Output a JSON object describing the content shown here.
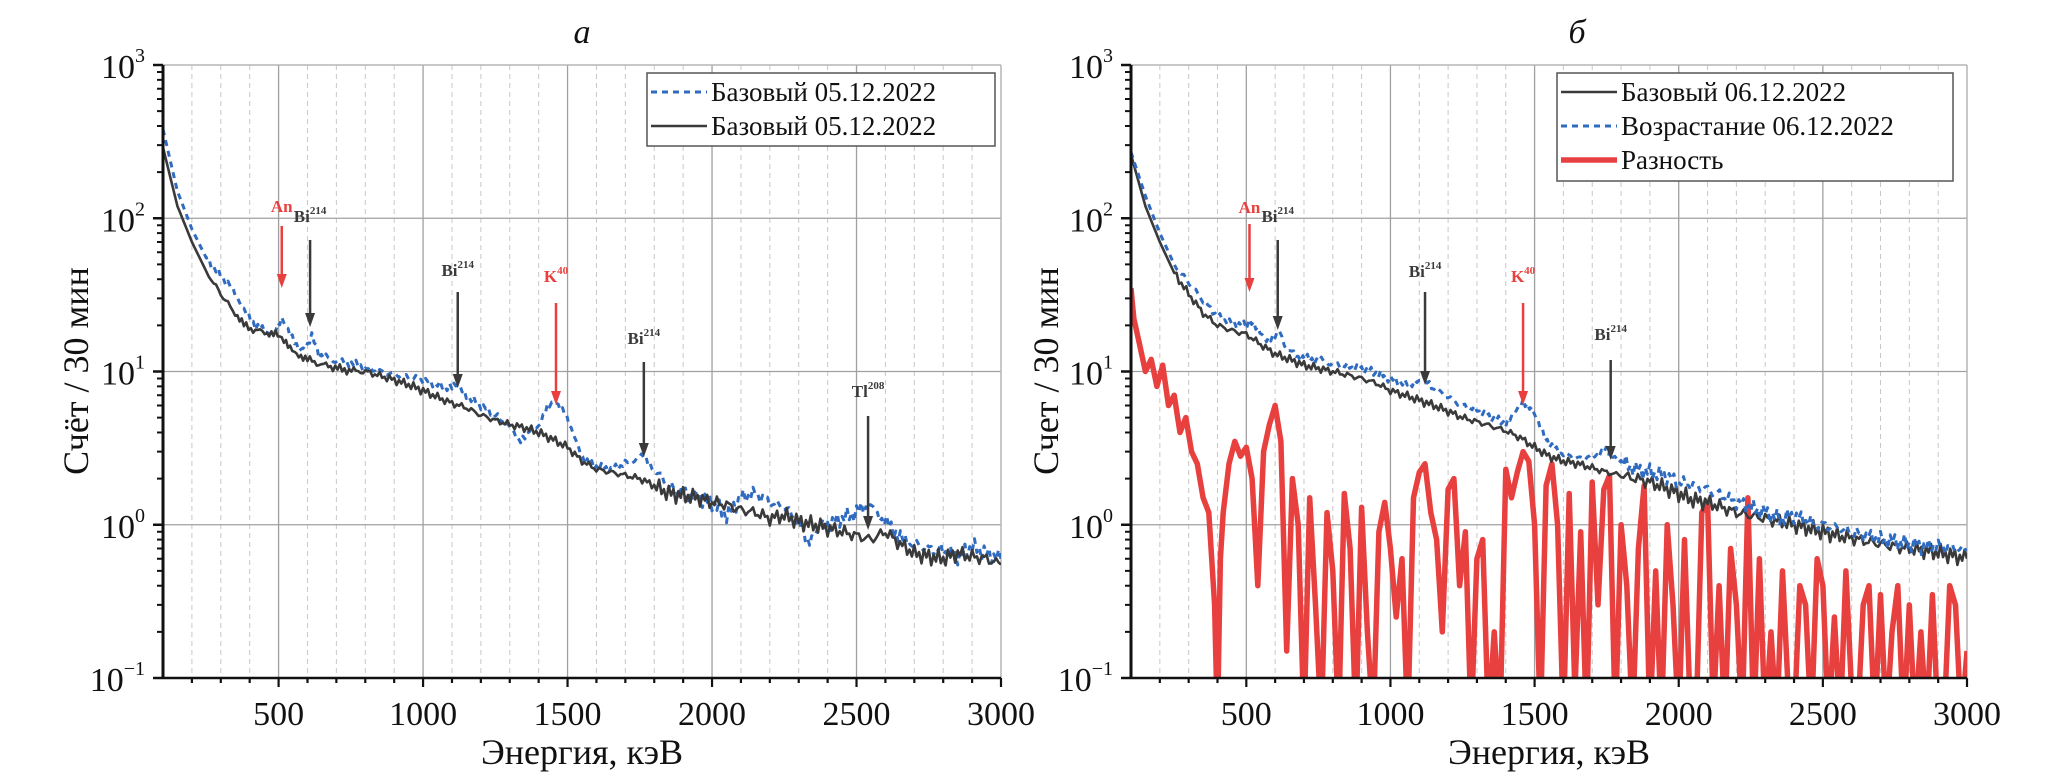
{
  "colors": {
    "base_black": "#3a3a3a",
    "blue_dashed": "#2f6bc0",
    "red_diff": "#e8403e",
    "annotation_red": "#e8403e",
    "annotation_dark": "#3a3a3a",
    "grid_major": "#a0a0a0",
    "grid_minor": "#c8c8c8"
  },
  "chart_data": [
    {
      "type": "line",
      "panel_title": "а",
      "xlabel": "Энергия, кэВ",
      "ylabel": "Счёт / 30 мин",
      "xlim": [
        100,
        3000
      ],
      "ylim": [
        0.1,
        1000
      ],
      "yscale": "log",
      "grid": true,
      "x_ticks": [
        "500",
        "1000",
        "1500",
        "2000",
        "2500",
        "3000"
      ],
      "y_ticks": [
        {
          "base": "10",
          "exp": "3"
        },
        {
          "base": "10",
          "exp": "2"
        },
        {
          "base": "10",
          "exp": "1"
        },
        {
          "base": "10",
          "exp": "0"
        },
        {
          "base": "10",
          "exp": "−1"
        }
      ],
      "legend_position": "top-right",
      "series": [
        {
          "name": "Базовый 05.12.2022",
          "style": "dashed",
          "color": "#2f6bc0",
          "x": [
            100,
            150,
            200,
            250,
            300,
            350,
            380,
            420,
            460,
            490,
            511,
            540,
            570,
            600,
            615,
            640,
            680,
            720,
            760,
            800,
            850,
            900,
            950,
            1000,
            1050,
            1100,
            1120,
            1150,
            1200,
            1250,
            1300,
            1330,
            1360,
            1400,
            1430,
            1460,
            1490,
            1520,
            1560,
            1600,
            1650,
            1700,
            1740,
            1764,
            1800,
            1850,
            1900,
            1950,
            2000,
            2050,
            2100,
            2150,
            2200,
            2250,
            2300,
            2330,
            2360,
            2400,
            2450,
            2500,
            2540,
            2580,
            2620,
            2660,
            2700,
            2750,
            2800,
            2850,
            2900,
            2950,
            3000
          ],
          "y": [
            380,
            150,
            85,
            55,
            42,
            33,
            25,
            20,
            18,
            19,
            22,
            17,
            14,
            15,
            17,
            13,
            12,
            11.5,
            11.2,
            10.5,
            10,
            9.6,
            9.2,
            8.8,
            8.2,
            7.8,
            8.0,
            7.0,
            6.0,
            5.2,
            4.3,
            3.6,
            3.9,
            4.5,
            5.8,
            6.2,
            5.6,
            3.8,
            2.6,
            2.4,
            2.3,
            2.5,
            2.7,
            2.8,
            2.3,
            1.8,
            1.6,
            1.5,
            1.4,
            1.15,
            1.5,
            1.6,
            1.4,
            1.3,
            1.05,
            0.75,
            0.95,
            1.0,
            1.1,
            1.2,
            1.35,
            1.15,
            0.95,
            0.8,
            0.75,
            0.7,
            0.68,
            0.62,
            0.72,
            0.65,
            0.6
          ]
        },
        {
          "name": "Базовый 05.12.2022",
          "style": "solid",
          "color": "#3a3a3a",
          "x": [
            100,
            150,
            200,
            250,
            300,
            350,
            380,
            420,
            460,
            490,
            511,
            540,
            570,
            600,
            640,
            680,
            720,
            760,
            800,
            850,
            900,
            950,
            1000,
            1050,
            1100,
            1150,
            1200,
            1250,
            1300,
            1350,
            1400,
            1450,
            1500,
            1550,
            1600,
            1650,
            1700,
            1750,
            1800,
            1850,
            1900,
            1950,
            2000,
            2050,
            2100,
            2150,
            2200,
            2250,
            2300,
            2350,
            2400,
            2450,
            2500,
            2550,
            2600,
            2650,
            2700,
            2750,
            2800,
            2850,
            2900,
            2950,
            3000
          ],
          "y": [
            290,
            120,
            70,
            45,
            32,
            24,
            20,
            18.5,
            18,
            17.5,
            16,
            14,
            13,
            12,
            11.2,
            10.8,
            10.3,
            10.1,
            10,
            9.4,
            8.8,
            8.2,
            7.5,
            6.8,
            6.2,
            5.8,
            5.2,
            4.8,
            4.5,
            4.3,
            4.0,
            3.6,
            3.2,
            2.6,
            2.3,
            2.2,
            2.1,
            2.0,
            1.8,
            1.6,
            1.55,
            1.5,
            1.4,
            1.35,
            1.25,
            1.2,
            1.1,
            1.15,
            1.05,
            1.0,
            0.95,
            0.9,
            0.85,
            0.8,
            0.9,
            0.75,
            0.65,
            0.62,
            0.6,
            0.65,
            0.62,
            0.6,
            0.55
          ]
        }
      ],
      "annotations": [
        {
          "label": "An",
          "sup": "",
          "energy": 511,
          "color": "#e8403e"
        },
        {
          "label": "Bi",
          "sup": "214",
          "energy": 609,
          "color": "#3a3a3a"
        },
        {
          "label": "Bi",
          "sup": "214",
          "energy": 1120,
          "color": "#3a3a3a"
        },
        {
          "label": "K",
          "sup": "40",
          "energy": 1460,
          "color": "#e8403e"
        },
        {
          "label": "Bi",
          "sup": "214",
          "energy": 1764,
          "color": "#3a3a3a"
        },
        {
          "label": "Tl",
          "sup": "208",
          "energy": 2540,
          "color": "#3a3a3a"
        }
      ]
    },
    {
      "type": "line",
      "panel_title": "б",
      "xlabel": "Энергия, кэВ",
      "ylabel": "Счет / 30 мин",
      "xlim": [
        100,
        3000
      ],
      "ylim": [
        0.1,
        1000
      ],
      "yscale": "log",
      "grid": true,
      "x_ticks": [
        "500",
        "1000",
        "1500",
        "2000",
        "2500",
        "3000"
      ],
      "y_ticks": [
        {
          "base": "10",
          "exp": "3"
        },
        {
          "base": "10",
          "exp": "2"
        },
        {
          "base": "10",
          "exp": "1"
        },
        {
          "base": "10",
          "exp": "0"
        },
        {
          "base": "10",
          "exp": "−1"
        }
      ],
      "legend_position": "top-right",
      "series": [
        {
          "name": "Базовый 06.12.2022",
          "style": "solid",
          "color": "#3a3a3a",
          "x": [
            100,
            150,
            200,
            250,
            300,
            350,
            400,
            450,
            500,
            550,
            600,
            650,
            700,
            750,
            800,
            850,
            900,
            950,
            1000,
            1050,
            1100,
            1150,
            1200,
            1250,
            1300,
            1350,
            1400,
            1450,
            1500,
            1550,
            1600,
            1650,
            1700,
            1750,
            1800,
            1850,
            1900,
            1950,
            2000,
            2050,
            2100,
            2150,
            2200,
            2250,
            2300,
            2350,
            2400,
            2450,
            2500,
            2550,
            2600,
            2650,
            2700,
            2750,
            2800,
            2850,
            2900,
            2950,
            3000
          ],
          "y": [
            260,
            120,
            70,
            44,
            32,
            24,
            20,
            18.5,
            17.5,
            15,
            13,
            12,
            11,
            10.5,
            10,
            9.5,
            9,
            8.4,
            7.5,
            7,
            6.5,
            6,
            5.5,
            5,
            4.7,
            4.4,
            4.1,
            3.7,
            3.2,
            2.8,
            2.6,
            2.5,
            2.35,
            2.2,
            2.1,
            2.0,
            1.9,
            1.75,
            1.6,
            1.45,
            1.4,
            1.3,
            1.2,
            1.15,
            1.1,
            1.05,
            1.0,
            0.95,
            0.9,
            0.85,
            0.82,
            0.78,
            0.75,
            0.72,
            0.7,
            0.68,
            0.66,
            0.63,
            0.6
          ]
        },
        {
          "name": "Возрастание 06.12.2022",
          "style": "dashed",
          "color": "#2f6bc0",
          "x": [
            100,
            150,
            200,
            250,
            300,
            350,
            400,
            450,
            500,
            511,
            540,
            570,
            600,
            615,
            640,
            680,
            720,
            760,
            800,
            850,
            900,
            950,
            1000,
            1050,
            1100,
            1120,
            1150,
            1200,
            1250,
            1300,
            1350,
            1400,
            1430,
            1460,
            1490,
            1520,
            1560,
            1600,
            1650,
            1700,
            1740,
            1764,
            1800,
            1850,
            1900,
            1950,
            2000,
            2050,
            2100,
            2150,
            2200,
            2250,
            2300,
            2350,
            2400,
            2450,
            2500,
            2550,
            2600,
            2650,
            2700,
            2750,
            2800,
            2850,
            2900,
            2950,
            3000
          ],
          "y": [
            270,
            140,
            80,
            50,
            38,
            29,
            23,
            20.5,
            20,
            21,
            18.5,
            16.5,
            17,
            18,
            14,
            12.5,
            12,
            11.8,
            11.2,
            10.8,
            10.4,
            9.8,
            9.0,
            8.3,
            8.5,
            9.0,
            7.8,
            6.8,
            6.0,
            5.6,
            5.0,
            4.6,
            5.2,
            6.5,
            5.8,
            4.2,
            3.2,
            2.9,
            2.7,
            2.8,
            3.0,
            3.0,
            2.6,
            2.3,
            2.2,
            2.1,
            1.9,
            1.8,
            1.7,
            1.55,
            1.4,
            1.3,
            1.2,
            1.1,
            1.15,
            1.05,
            1.0,
            0.95,
            0.9,
            0.85,
            0.8,
            0.78,
            0.75,
            0.72,
            0.72,
            0.7,
            0.68
          ]
        },
        {
          "name": "Разность",
          "style": "solid-thick",
          "color": "#e8403e",
          "x": [
            100,
            110,
            130,
            150,
            170,
            190,
            210,
            230,
            250,
            270,
            290,
            310,
            330,
            350,
            370,
            390,
            400,
            410,
            420,
            440,
            460,
            480,
            500,
            520,
            540,
            560,
            580,
            600,
            620,
            640,
            660,
            680,
            700,
            720,
            740,
            760,
            780,
            800,
            820,
            840,
            860,
            880,
            900,
            920,
            940,
            960,
            980,
            1000,
            1020,
            1040,
            1060,
            1080,
            1100,
            1120,
            1140,
            1160,
            1180,
            1200,
            1220,
            1240,
            1260,
            1280,
            1300,
            1320,
            1340,
            1360,
            1380,
            1400,
            1420,
            1440,
            1460,
            1480,
            1500,
            1520,
            1540,
            1560,
            1580,
            1600,
            1620,
            1640,
            1660,
            1680,
            1700,
            1720,
            1740,
            1760,
            1780,
            1800,
            1820,
            1840,
            1860,
            1880,
            1900,
            1920,
            1940,
            1960,
            1980,
            2000,
            2020,
            2040,
            2060,
            2080,
            2100,
            2120,
            2140,
            2160,
            2180,
            2200,
            2220,
            2240,
            2260,
            2280,
            2300,
            2320,
            2340,
            2360,
            2380,
            2400,
            2420,
            2440,
            2460,
            2480,
            2500,
            2520,
            2540,
            2560,
            2580,
            2600,
            2620,
            2640,
            2660,
            2680,
            2700,
            2720,
            2740,
            2760,
            2780,
            2800,
            2820,
            2840,
            2860,
            2880,
            2900,
            2920,
            2940,
            2960,
            2980,
            3000
          ],
          "y": [
            35,
            22,
            15,
            10,
            12,
            8,
            11,
            6,
            7,
            4,
            5,
            3,
            2.5,
            1.5,
            1.2,
            0.3,
            0.05,
            0.6,
            1.2,
            2.5,
            3.5,
            2.8,
            3.2,
            2.0,
            0.4,
            3.0,
            4.5,
            6.0,
            3.5,
            0.15,
            2.0,
            1.0,
            0.05,
            1.5,
            0.3,
            0.05,
            1.2,
            0.5,
            0.05,
            1.6,
            0.7,
            0.05,
            1.3,
            0.2,
            0.05,
            0.9,
            1.4,
            0.7,
            0.25,
            0.6,
            0.05,
            1.5,
            2.2,
            2.5,
            1.2,
            0.8,
            0.2,
            1.7,
            2.0,
            0.4,
            0.9,
            0.05,
            0.6,
            0.8,
            0.05,
            0.2,
            0.05,
            2.3,
            1.5,
            2.2,
            3.0,
            2.6,
            1.0,
            0.05,
            1.8,
            2.5,
            1.0,
            0.05,
            1.6,
            0.08,
            0.9,
            0.05,
            1.9,
            0.3,
            1.7,
            2.1,
            0.05,
            1.0,
            0.4,
            0.05,
            0.7,
            1.8,
            0.05,
            0.5,
            0.05,
            1.0,
            0.3,
            0.05,
            0.8,
            0.06,
            0.05,
            1.2,
            1.4,
            0.06,
            0.4,
            0.05,
            0.7,
            0.3,
            0.05,
            1.5,
            0.05,
            0.6,
            0.05,
            0.2,
            0.05,
            0.5,
            0.08,
            0.05,
            0.4,
            0.3,
            0.05,
            0.6,
            0.4,
            0.05,
            0.25,
            0.05,
            0.5,
            0.08,
            0.05,
            0.3,
            0.4,
            0.05,
            0.35,
            0.05,
            0.2,
            0.4,
            0.05,
            0.3,
            0.05,
            0.2,
            0.05,
            0.35,
            0.05,
            0.05,
            0.4,
            0.3,
            0.05,
            0.15
          ]
        }
      ],
      "annotations": [
        {
          "label": "An",
          "sup": "",
          "energy": 511,
          "color": "#e8403e"
        },
        {
          "label": "Bi",
          "sup": "214",
          "energy": 609,
          "color": "#3a3a3a"
        },
        {
          "label": "Bi",
          "sup": "214",
          "energy": 1120,
          "color": "#3a3a3a"
        },
        {
          "label": "K",
          "sup": "40",
          "energy": 1460,
          "color": "#e8403e"
        },
        {
          "label": "Bi",
          "sup": "214",
          "energy": 1764,
          "color": "#3a3a3a"
        }
      ]
    }
  ]
}
